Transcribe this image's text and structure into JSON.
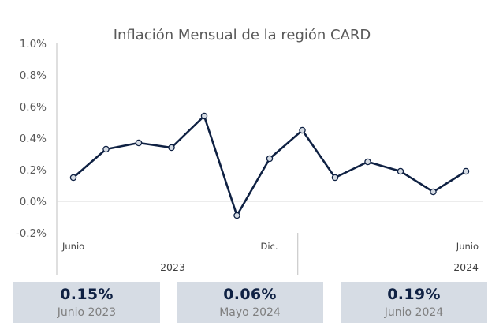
{
  "chart_data": {
    "type": "line",
    "title": "Inflación Mensual de la región CARD",
    "xlabel": "",
    "ylabel": "",
    "ylim": [
      -0.2,
      1.0
    ],
    "yticks": [
      "1.0%",
      "0.8%",
      "0.6%",
      "0.4%",
      "0.2%",
      "0.0%",
      "-0.2%"
    ],
    "ytick_values": [
      1.0,
      0.8,
      0.6,
      0.4,
      0.2,
      0.0,
      -0.2
    ],
    "grid": false,
    "categories": [
      "Junio",
      "",
      "",
      "",
      "",
      "",
      "Dic.",
      "",
      "",
      "",
      "",
      "",
      "Junio"
    ],
    "year_groups": [
      {
        "label": "2023",
        "start": 0,
        "end": 6
      },
      {
        "label": "2024",
        "start": 7,
        "end": 12
      }
    ],
    "series": [
      {
        "values": [
          0.15,
          0.33,
          0.37,
          0.34,
          0.54,
          -0.09,
          0.27,
          0.45,
          0.15,
          0.25,
          0.19,
          0.06,
          0.19
        ],
        "color": "#0f2143"
      }
    ]
  },
  "kpis": [
    {
      "value": "0.15%",
      "label": "Junio 2023"
    },
    {
      "value": "0.06%",
      "label": "Mayo 2024"
    },
    {
      "value": "0.19%",
      "label": "Junio 2024"
    }
  ]
}
